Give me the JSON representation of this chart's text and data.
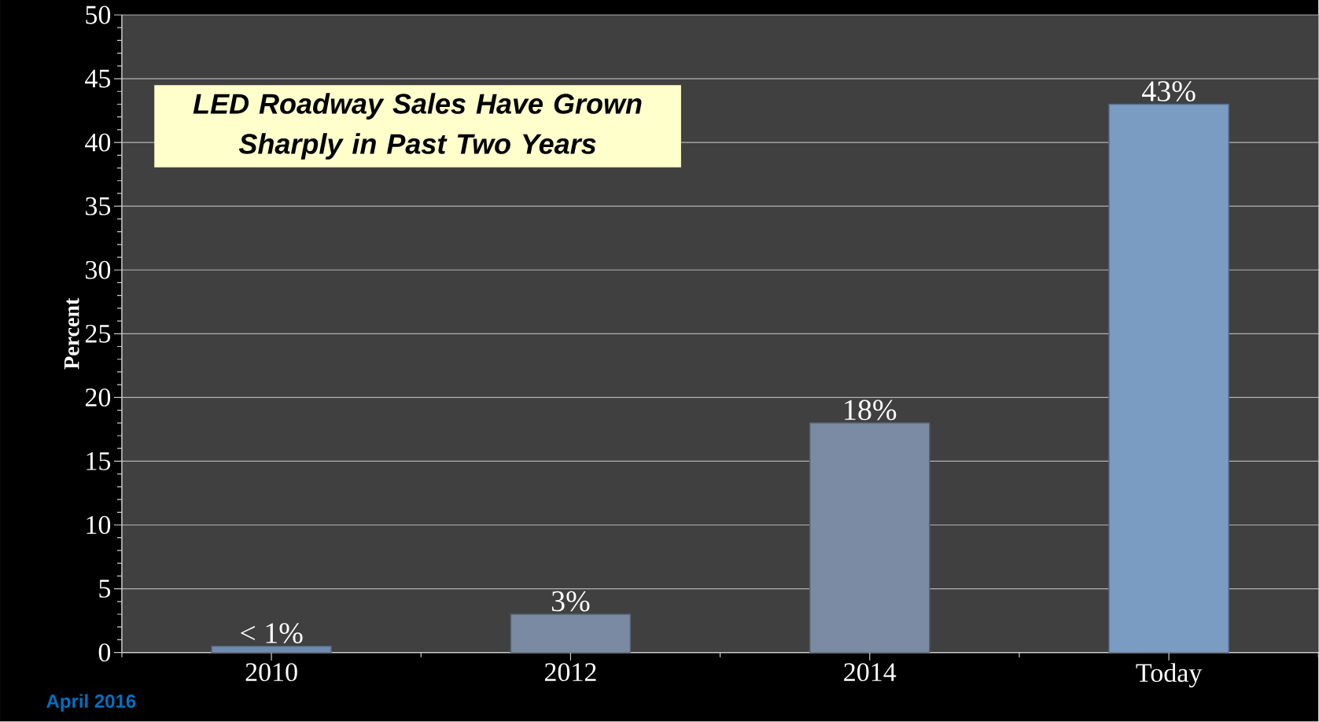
{
  "chart_data": {
    "type": "bar",
    "title": "LED Roadway Sales Have Grown Sharply in Past Two Years",
    "ylabel": "Percent",
    "categories": [
      "2010",
      "2012",
      "2014",
      "Today"
    ],
    "values": [
      0.5,
      3,
      18,
      43
    ],
    "colors": [
      "#6f8bb0",
      "#7a8aa3",
      "#7c8ba4",
      "#7b9cc2"
    ],
    "value_labels": [
      "< 1%",
      "3%",
      "18%",
      "43%"
    ],
    "ylim": [
      0,
      50
    ],
    "yticks": [
      0,
      5,
      10,
      15,
      20,
      25,
      30,
      35,
      40,
      45,
      50
    ],
    "grid": "y",
    "annotations": [
      "April 2016"
    ]
  }
}
